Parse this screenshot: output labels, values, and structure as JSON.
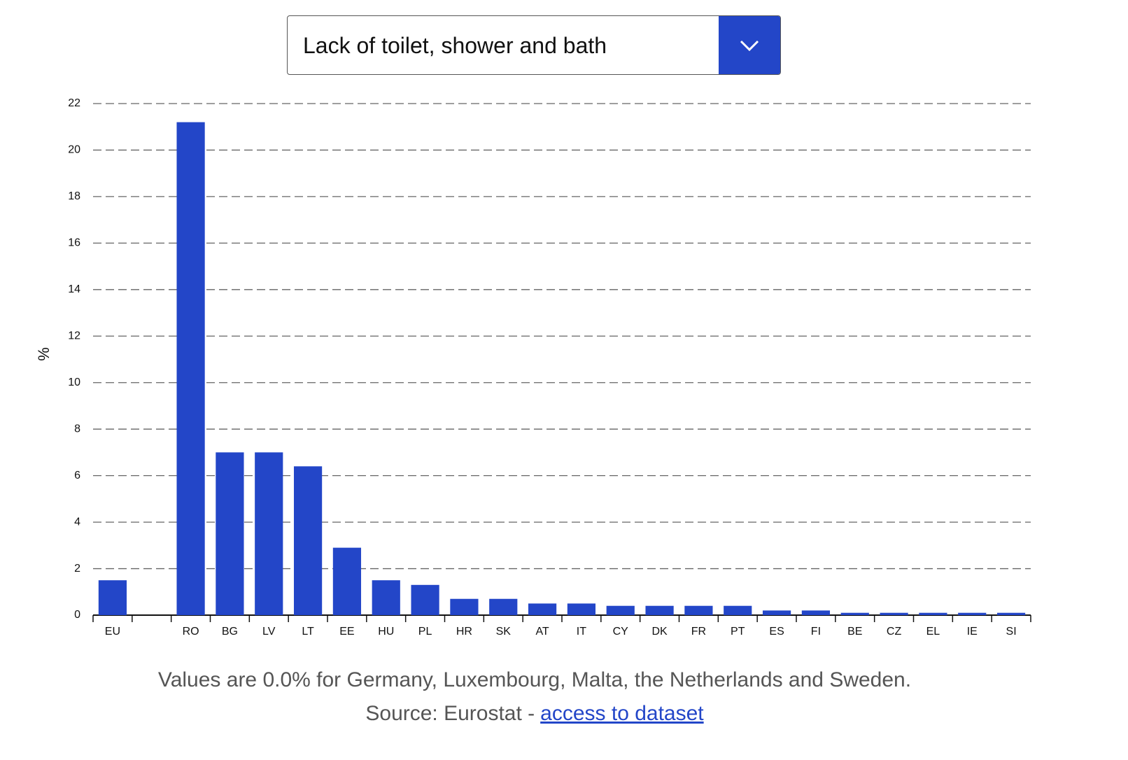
{
  "dropdown": {
    "selected": "Lack of toilet, shower and bath"
  },
  "chart_data": {
    "type": "bar",
    "y_label": "%",
    "categories": [
      "EU",
      null,
      "RO",
      "BG",
      "LV",
      "LT",
      "EE",
      "HU",
      "PL",
      "HR",
      "SK",
      "AT",
      "IT",
      "CY",
      "DK",
      "FR",
      "PT",
      "ES",
      "FI",
      "BE",
      "CZ",
      "EL",
      "IE",
      "SI"
    ],
    "values": [
      1.5,
      null,
      21.2,
      7.0,
      7.0,
      6.4,
      2.9,
      1.5,
      1.3,
      0.7,
      0.7,
      0.5,
      0.5,
      0.4,
      0.4,
      0.4,
      0.4,
      0.2,
      0.2,
      0.1,
      0.1,
      0.1,
      0.1,
      0.1
    ],
    "color": "#2346c8",
    "ylim": [
      0,
      22
    ],
    "yticks": [
      0,
      2,
      4,
      6,
      8,
      10,
      12,
      14,
      16,
      18,
      20,
      22
    ],
    "grid": true
  },
  "footnote": "Values are 0.0% for Germany, Luxembourg, Malta, the Netherlands and Sweden.",
  "source": {
    "text": "Source: Eurostat -",
    "link": "access to dataset"
  }
}
